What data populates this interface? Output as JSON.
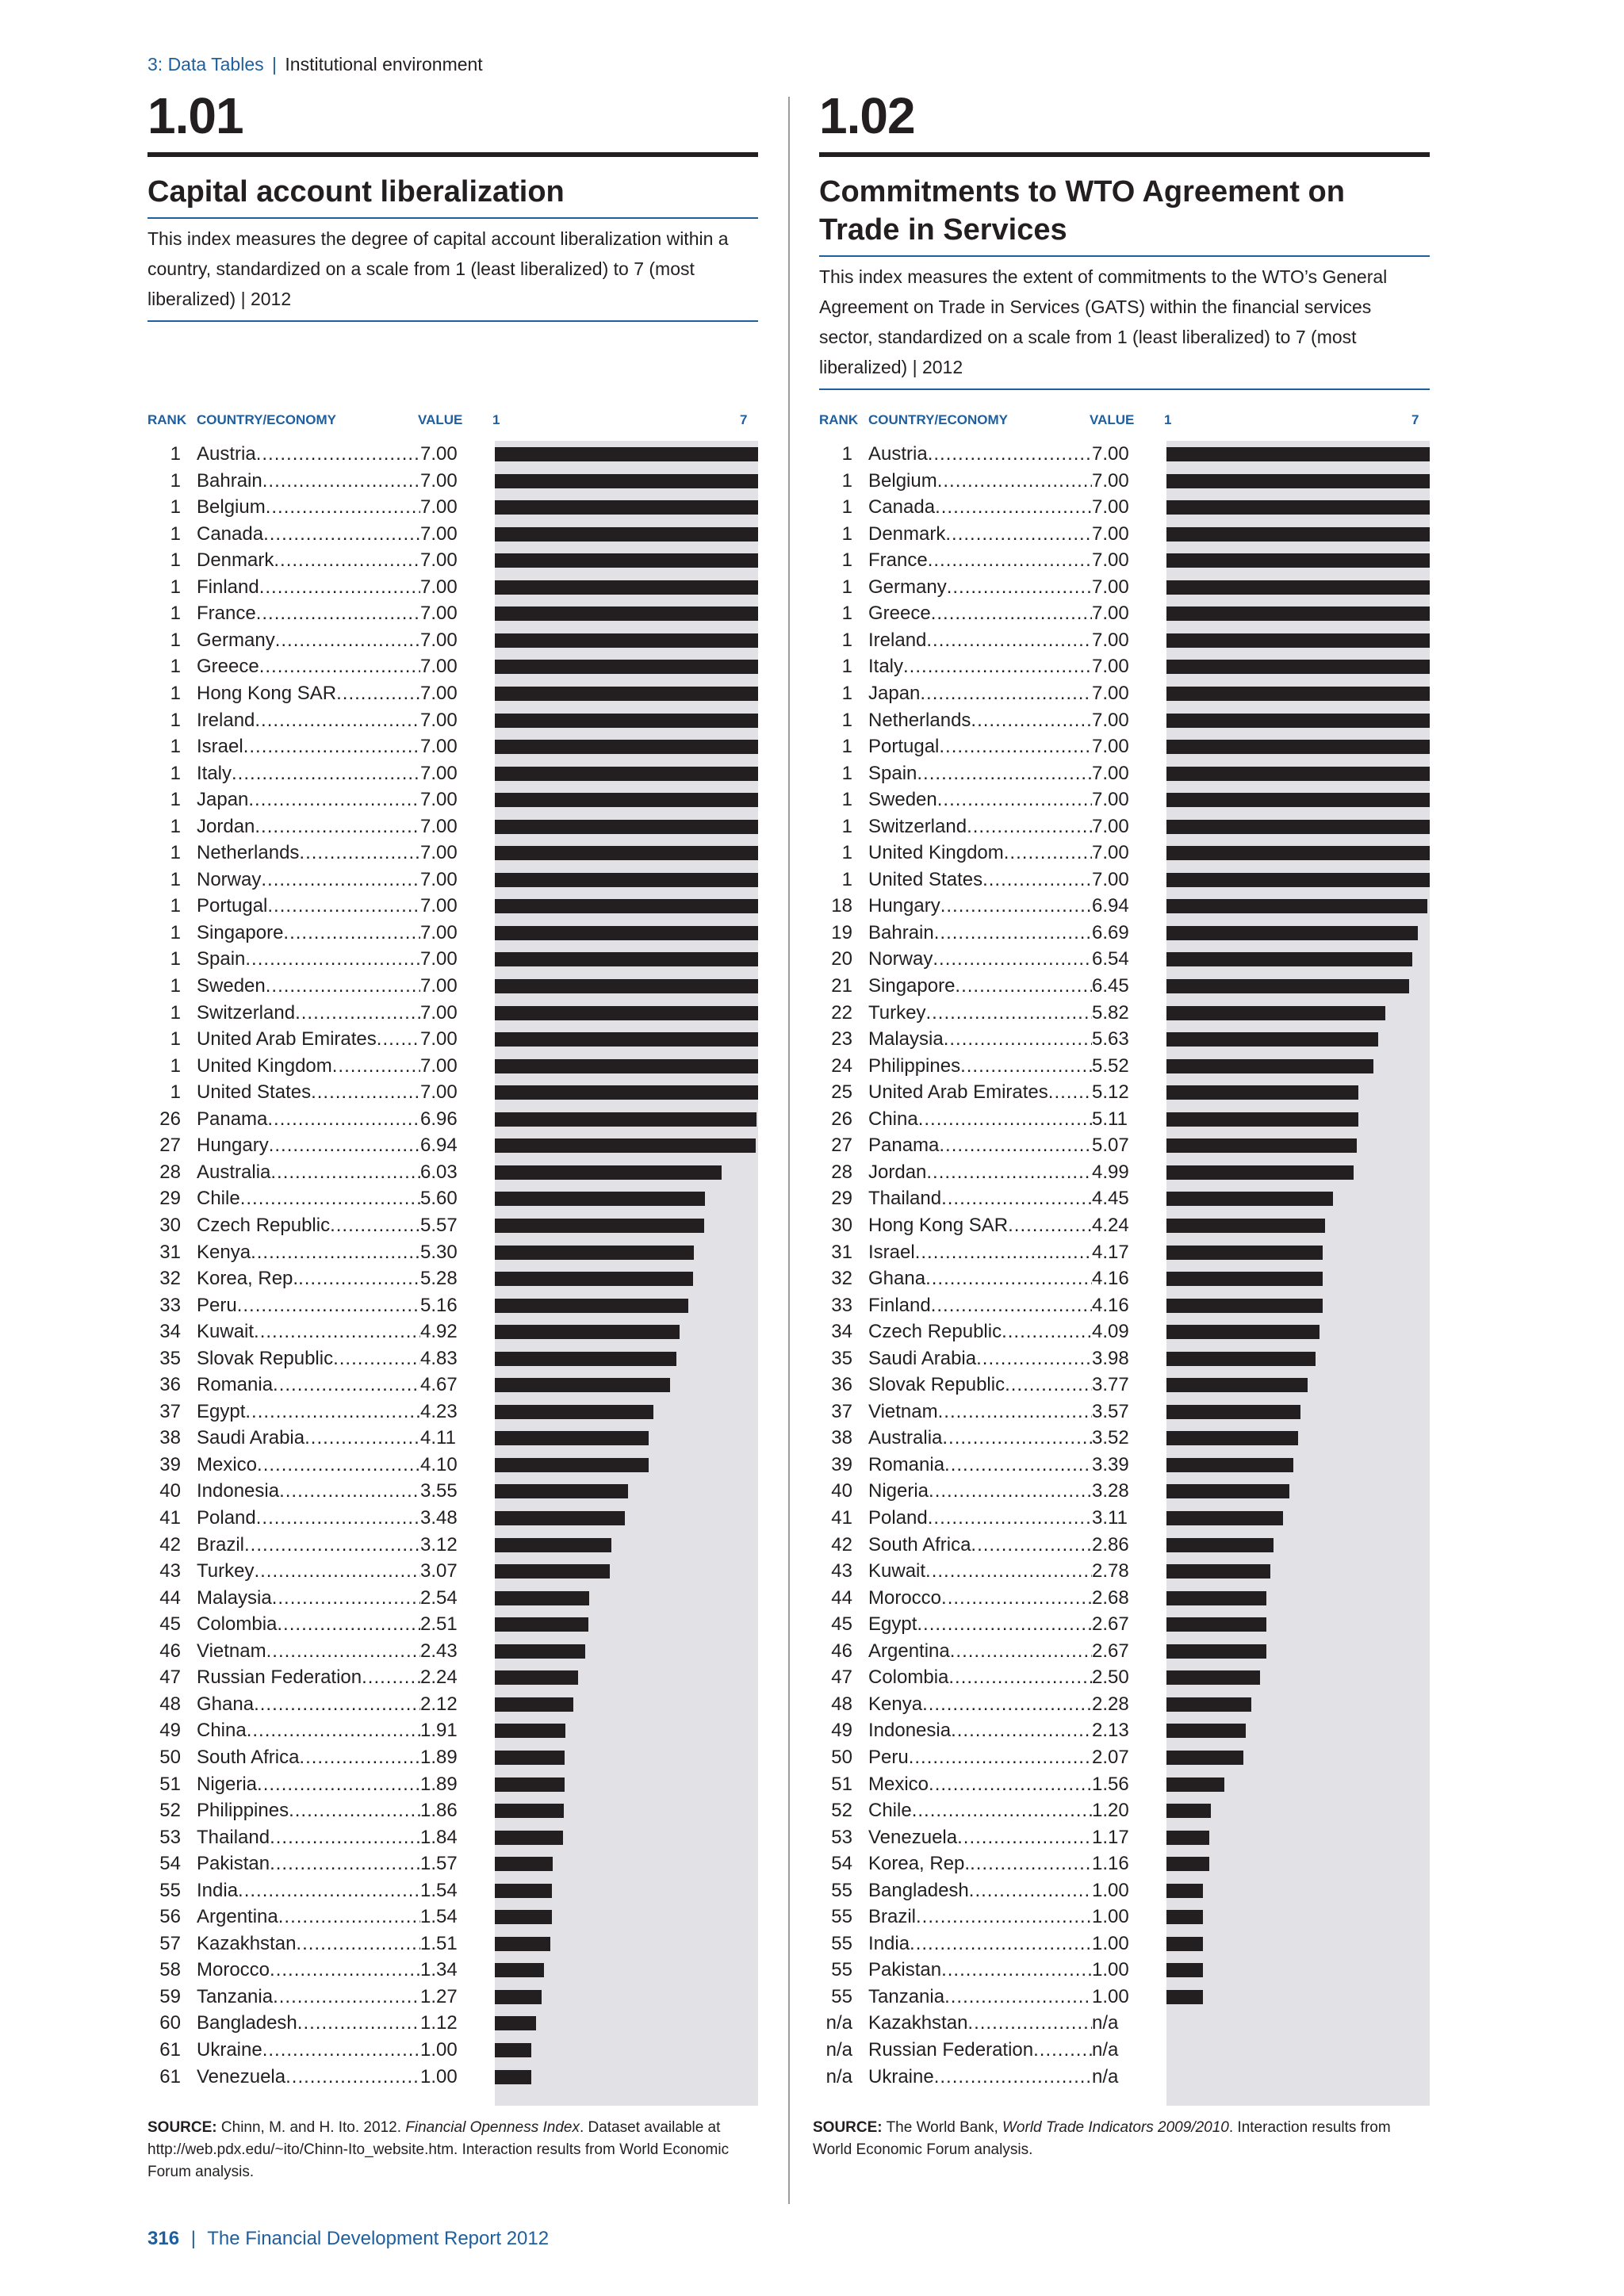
{
  "breadcrumb": {
    "section": "3: Data Tables",
    "separator": "|",
    "title": "Institutional environment"
  },
  "footer": {
    "page": "316",
    "separator": "|",
    "title": "The Financial Development Report 2012"
  },
  "headers": {
    "rank": "RANK",
    "country": "COUNTRY/ECONOMY",
    "value": "VALUE",
    "scale_min": "1",
    "scale_max": "7"
  },
  "tables": [
    {
      "number": "1.01",
      "title": "Capital account liberalization",
      "description": "This index measures the degree of capital account liberalization within a country, standardized on a scale from 1 (least liberalized) to 7 (most liberalized) | 2012",
      "source_label": "SOURCE:",
      "source_text": "Chinn, M. and H. Ito. 2012. ",
      "source_italic": "Financial Openness Index",
      "source_text2": ". Dataset available at http://web.pdx.edu/~ito/Chinn-Ito_website.htm. Interaction results from World Economic Forum analysis.",
      "rows": [
        {
          "rank": "1",
          "country": "Austria",
          "value": "7.00"
        },
        {
          "rank": "1",
          "country": "Bahrain",
          "value": "7.00"
        },
        {
          "rank": "1",
          "country": "Belgium",
          "value": "7.00"
        },
        {
          "rank": "1",
          "country": "Canada",
          "value": "7.00"
        },
        {
          "rank": "1",
          "country": "Denmark",
          "value": "7.00"
        },
        {
          "rank": "1",
          "country": "Finland",
          "value": "7.00"
        },
        {
          "rank": "1",
          "country": "France",
          "value": "7.00"
        },
        {
          "rank": "1",
          "country": "Germany",
          "value": "7.00"
        },
        {
          "rank": "1",
          "country": "Greece",
          "value": "7.00"
        },
        {
          "rank": "1",
          "country": "Hong Kong SAR",
          "value": "7.00"
        },
        {
          "rank": "1",
          "country": "Ireland",
          "value": "7.00"
        },
        {
          "rank": "1",
          "country": "Israel",
          "value": "7.00"
        },
        {
          "rank": "1",
          "country": "Italy",
          "value": "7.00"
        },
        {
          "rank": "1",
          "country": "Japan",
          "value": "7.00"
        },
        {
          "rank": "1",
          "country": "Jordan",
          "value": "7.00"
        },
        {
          "rank": "1",
          "country": "Netherlands",
          "value": "7.00"
        },
        {
          "rank": "1",
          "country": "Norway",
          "value": "7.00"
        },
        {
          "rank": "1",
          "country": "Portugal",
          "value": "7.00"
        },
        {
          "rank": "1",
          "country": "Singapore",
          "value": "7.00"
        },
        {
          "rank": "1",
          "country": "Spain",
          "value": "7.00"
        },
        {
          "rank": "1",
          "country": "Sweden",
          "value": "7.00"
        },
        {
          "rank": "1",
          "country": "Switzerland",
          "value": "7.00"
        },
        {
          "rank": "1",
          "country": "United Arab Emirates",
          "value": "7.00"
        },
        {
          "rank": "1",
          "country": "United Kingdom",
          "value": "7.00"
        },
        {
          "rank": "1",
          "country": "United States",
          "value": "7.00"
        },
        {
          "rank": "26",
          "country": "Panama",
          "value": "6.96"
        },
        {
          "rank": "27",
          "country": "Hungary",
          "value": "6.94"
        },
        {
          "rank": "28",
          "country": "Australia",
          "value": "6.03"
        },
        {
          "rank": "29",
          "country": "Chile",
          "value": "5.60"
        },
        {
          "rank": "30",
          "country": "Czech Republic",
          "value": "5.57"
        },
        {
          "rank": "31",
          "country": "Kenya",
          "value": "5.30"
        },
        {
          "rank": "32",
          "country": "Korea, Rep.",
          "value": "5.28"
        },
        {
          "rank": "33",
          "country": "Peru",
          "value": "5.16"
        },
        {
          "rank": "34",
          "country": "Kuwait",
          "value": "4.92"
        },
        {
          "rank": "35",
          "country": "Slovak Republic",
          "value": "4.83"
        },
        {
          "rank": "36",
          "country": "Romania",
          "value": "4.67"
        },
        {
          "rank": "37",
          "country": "Egypt",
          "value": "4.23"
        },
        {
          "rank": "38",
          "country": "Saudi Arabia",
          "value": "4.11"
        },
        {
          "rank": "39",
          "country": "Mexico",
          "value": "4.10"
        },
        {
          "rank": "40",
          "country": "Indonesia",
          "value": "3.55"
        },
        {
          "rank": "41",
          "country": "Poland",
          "value": "3.48"
        },
        {
          "rank": "42",
          "country": "Brazil",
          "value": "3.12"
        },
        {
          "rank": "43",
          "country": "Turkey",
          "value": "3.07"
        },
        {
          "rank": "44",
          "country": "Malaysia",
          "value": "2.54"
        },
        {
          "rank": "45",
          "country": "Colombia",
          "value": "2.51"
        },
        {
          "rank": "46",
          "country": "Vietnam",
          "value": "2.43"
        },
        {
          "rank": "47",
          "country": "Russian Federation",
          "value": "2.24"
        },
        {
          "rank": "48",
          "country": "Ghana",
          "value": "2.12"
        },
        {
          "rank": "49",
          "country": "China",
          "value": "1.91"
        },
        {
          "rank": "50",
          "country": "South Africa",
          "value": "1.89"
        },
        {
          "rank": "51",
          "country": "Nigeria",
          "value": "1.89"
        },
        {
          "rank": "52",
          "country": "Philippines",
          "value": "1.86"
        },
        {
          "rank": "53",
          "country": "Thailand",
          "value": "1.84"
        },
        {
          "rank": "54",
          "country": "Pakistan",
          "value": "1.57"
        },
        {
          "rank": "55",
          "country": "India",
          "value": "1.54"
        },
        {
          "rank": "56",
          "country": "Argentina",
          "value": "1.54"
        },
        {
          "rank": "57",
          "country": "Kazakhstan",
          "value": "1.51"
        },
        {
          "rank": "58",
          "country": "Morocco",
          "value": "1.34"
        },
        {
          "rank": "59",
          "country": "Tanzania",
          "value": "1.27"
        },
        {
          "rank": "60",
          "country": "Bangladesh",
          "value": "1.12"
        },
        {
          "rank": "61",
          "country": "Ukraine",
          "value": "1.00"
        },
        {
          "rank": "61",
          "country": "Venezuela",
          "value": "1.00"
        }
      ]
    },
    {
      "number": "1.02",
      "title": "Commitments to WTO Agreement on Trade in Services",
      "description": "This index measures the extent of commitments to the WTO’s General Agreement on Trade in Services (GATS) within the financial services sector, standardized on a scale from 1 (least liberalized) to 7 (most liberalized) | 2012",
      "source_label": "SOURCE:",
      "source_text": "The World Bank, ",
      "source_italic": "World Trade Indicators 2009/2010",
      "source_text2": ". Interaction results from World Economic Forum analysis.",
      "rows": [
        {
          "rank": "1",
          "country": "Austria",
          "value": "7.00"
        },
        {
          "rank": "1",
          "country": "Belgium",
          "value": "7.00"
        },
        {
          "rank": "1",
          "country": "Canada",
          "value": "7.00"
        },
        {
          "rank": "1",
          "country": "Denmark",
          "value": "7.00"
        },
        {
          "rank": "1",
          "country": "France",
          "value": "7.00"
        },
        {
          "rank": "1",
          "country": "Germany",
          "value": "7.00"
        },
        {
          "rank": "1",
          "country": "Greece",
          "value": "7.00"
        },
        {
          "rank": "1",
          "country": "Ireland",
          "value": "7.00"
        },
        {
          "rank": "1",
          "country": "Italy",
          "value": "7.00"
        },
        {
          "rank": "1",
          "country": "Japan",
          "value": "7.00"
        },
        {
          "rank": "1",
          "country": "Netherlands",
          "value": "7.00"
        },
        {
          "rank": "1",
          "country": "Portugal",
          "value": "7.00"
        },
        {
          "rank": "1",
          "country": "Spain",
          "value": "7.00"
        },
        {
          "rank": "1",
          "country": "Sweden",
          "value": "7.00"
        },
        {
          "rank": "1",
          "country": "Switzerland",
          "value": "7.00"
        },
        {
          "rank": "1",
          "country": "United Kingdom",
          "value": "7.00"
        },
        {
          "rank": "1",
          "country": "United States",
          "value": "7.00"
        },
        {
          "rank": "18",
          "country": "Hungary",
          "value": "6.94"
        },
        {
          "rank": "19",
          "country": "Bahrain",
          "value": "6.69"
        },
        {
          "rank": "20",
          "country": "Norway",
          "value": "6.54"
        },
        {
          "rank": "21",
          "country": "Singapore",
          "value": "6.45"
        },
        {
          "rank": "22",
          "country": "Turkey",
          "value": "5.82"
        },
        {
          "rank": "23",
          "country": "Malaysia",
          "value": "5.63"
        },
        {
          "rank": "24",
          "country": "Philippines",
          "value": "5.52"
        },
        {
          "rank": "25",
          "country": "United Arab Emirates",
          "value": "5.12"
        },
        {
          "rank": "26",
          "country": "China",
          "value": "5.11"
        },
        {
          "rank": "27",
          "country": "Panama",
          "value": "5.07"
        },
        {
          "rank": "28",
          "country": "Jordan",
          "value": "4.99"
        },
        {
          "rank": "29",
          "country": "Thailand",
          "value": "4.45"
        },
        {
          "rank": "30",
          "country": "Hong Kong SAR",
          "value": "4.24"
        },
        {
          "rank": "31",
          "country": "Israel",
          "value": "4.17"
        },
        {
          "rank": "32",
          "country": "Ghana",
          "value": "4.16"
        },
        {
          "rank": "33",
          "country": "Finland",
          "value": "4.16"
        },
        {
          "rank": "34",
          "country": "Czech Republic",
          "value": "4.09"
        },
        {
          "rank": "35",
          "country": "Saudi Arabia",
          "value": "3.98"
        },
        {
          "rank": "36",
          "country": "Slovak Republic",
          "value": "3.77"
        },
        {
          "rank": "37",
          "country": "Vietnam",
          "value": "3.57"
        },
        {
          "rank": "38",
          "country": "Australia",
          "value": "3.52"
        },
        {
          "rank": "39",
          "country": "Romania",
          "value": "3.39"
        },
        {
          "rank": "40",
          "country": "Nigeria",
          "value": "3.28"
        },
        {
          "rank": "41",
          "country": "Poland",
          "value": "3.11"
        },
        {
          "rank": "42",
          "country": "South Africa",
          "value": "2.86"
        },
        {
          "rank": "43",
          "country": "Kuwait",
          "value": "2.78"
        },
        {
          "rank": "44",
          "country": "Morocco",
          "value": "2.68"
        },
        {
          "rank": "45",
          "country": "Egypt",
          "value": "2.67"
        },
        {
          "rank": "46",
          "country": "Argentina",
          "value": "2.67"
        },
        {
          "rank": "47",
          "country": "Colombia",
          "value": "2.50"
        },
        {
          "rank": "48",
          "country": "Kenya",
          "value": "2.28"
        },
        {
          "rank": "49",
          "country": "Indonesia",
          "value": "2.13"
        },
        {
          "rank": "50",
          "country": "Peru",
          "value": "2.07"
        },
        {
          "rank": "51",
          "country": "Mexico",
          "value": "1.56"
        },
        {
          "rank": "52",
          "country": "Chile",
          "value": "1.20"
        },
        {
          "rank": "53",
          "country": "Venezuela",
          "value": "1.17"
        },
        {
          "rank": "54",
          "country": "Korea, Rep.",
          "value": "1.16"
        },
        {
          "rank": "55",
          "country": "Bangladesh",
          "value": "1.00"
        },
        {
          "rank": "55",
          "country": "Brazil",
          "value": "1.00"
        },
        {
          "rank": "55",
          "country": "India",
          "value": "1.00"
        },
        {
          "rank": "55",
          "country": "Pakistan",
          "value": "1.00"
        },
        {
          "rank": "55",
          "country": "Tanzania",
          "value": "1.00"
        },
        {
          "rank": "n/a",
          "country": "Kazakhstan",
          "value": "n/a"
        },
        {
          "rank": "n/a",
          "country": "Russian Federation",
          "value": "n/a"
        },
        {
          "rank": "n/a",
          "country": "Ukraine",
          "value": "n/a"
        }
      ]
    }
  ],
  "colors": {
    "accent": "#1f5f9e",
    "bar": "#231f20",
    "track": "#e2e1e5",
    "text": "#231f20"
  }
}
